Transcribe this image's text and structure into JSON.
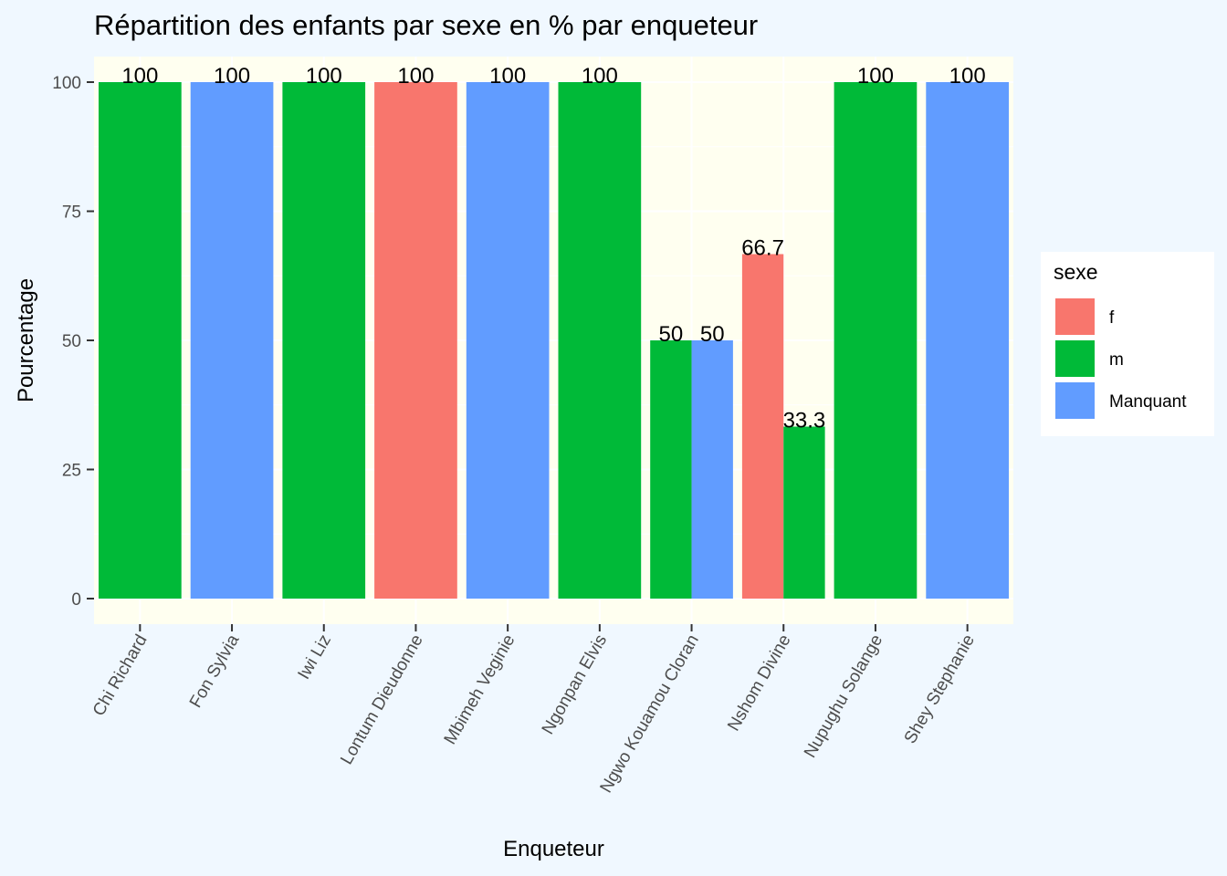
{
  "chart_data": {
    "type": "bar",
    "title": "Répartition des enfants par sexe en % par enqueteur",
    "xlabel": "Enqueteur",
    "ylabel": "Pourcentage",
    "ylim": [
      0,
      105
    ],
    "yticks": [
      0,
      25,
      50,
      75,
      100
    ],
    "categories": [
      "Chi Richard",
      "Fon Sylvia",
      "Iwi Liz",
      "Lontum Dieudonne",
      "Mbimeh Veginie",
      "Ngonpan Elvis",
      "Ngwo Kouamou Cloran",
      "Nshom Divine",
      "Nupughu Solange",
      "Shey Stephanie"
    ],
    "series": [
      {
        "name": "f",
        "color": "#F8766D",
        "values": [
          null,
          null,
          null,
          100,
          null,
          null,
          null,
          66.7,
          null,
          null
        ]
      },
      {
        "name": "m",
        "color": "#00BA38",
        "values": [
          100,
          null,
          100,
          null,
          null,
          100,
          50,
          33.3,
          100,
          null
        ]
      },
      {
        "name": "Manquant",
        "color": "#619CFF",
        "values": [
          null,
          100,
          null,
          null,
          100,
          null,
          50,
          null,
          null,
          100
        ]
      }
    ],
    "grid": true,
    "panel_background": "#fffff0",
    "legend": {
      "title": "sexe",
      "position": "right"
    }
  }
}
